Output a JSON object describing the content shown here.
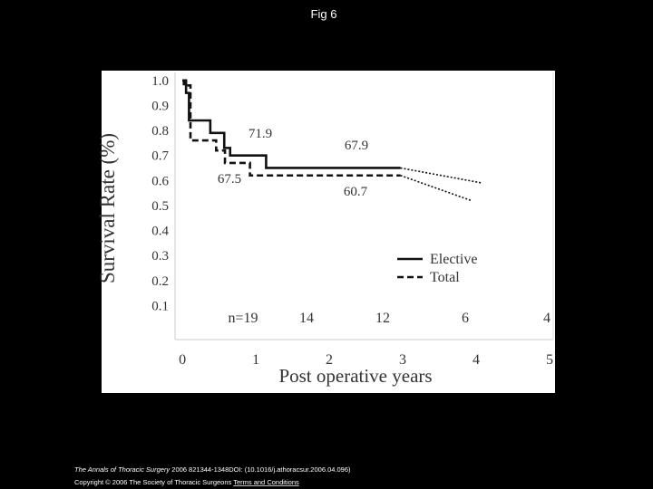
{
  "title": "Fig 6",
  "chart_data": {
    "type": "line",
    "step": "post",
    "ylabel": "Survival Rate  (%)",
    "xlabel": "Post operative years",
    "xlim": [
      -0.1,
      5.05
    ],
    "xticks": [
      0,
      1,
      2,
      3,
      4,
      5
    ],
    "ylim": [
      0,
      1.05
    ],
    "yticks": [
      {
        "value": 1,
        "label": "1.0"
      },
      0.9,
      0.8,
      0.7,
      0.6,
      0.5,
      0.4,
      0.3,
      0.2,
      0.1
    ],
    "legend": "lower right",
    "series": [
      {
        "name": "Elective",
        "color": "#111111",
        "dash": "solid",
        "x": [
          0,
          0.05,
          0.09,
          0.38,
          0.57,
          0.65,
          1.14,
          2.97
        ],
        "values": [
          1,
          0.95,
          0.84,
          0.79,
          0.73,
          0.7,
          0.65,
          0.65
        ],
        "projection": {
          "x": [
            2.97,
            4.08
          ],
          "values": [
            0.65,
            0.59
          ]
        }
      },
      {
        "name": "Total",
        "color": "#111111",
        "dash": "dashed",
        "x": [
          0,
          0.02,
          0.11,
          0.46,
          0.58,
          0.92,
          2.97
        ],
        "values": [
          1,
          0.98,
          0.76,
          0.72,
          0.67,
          0.62,
          0.62
        ],
        "projection": {
          "x": [
            2.97,
            3.93
          ],
          "values": [
            0.62,
            0.52
          ]
        }
      }
    ],
    "annotations": [
      "71.9",
      "67.9",
      "67.5",
      "60.7"
    ],
    "at_risk": [
      "n=19",
      "14",
      "12",
      "6",
      "4"
    ]
  },
  "footer": {
    "journal": "The Annals of Thoracic Surgery",
    "citation": "2006 821344-1348DOI: (10.1016/j.athoracsur.2006.04.096)",
    "copyright": "Copyright © 2006 The Society of Thoracic Surgeons",
    "link": "Terms and Conditions"
  }
}
